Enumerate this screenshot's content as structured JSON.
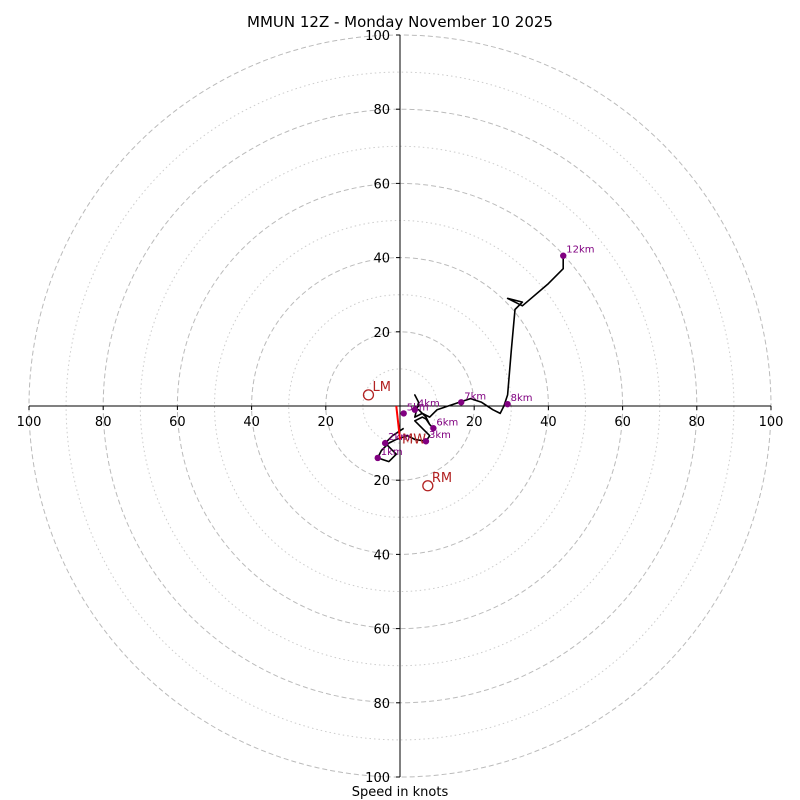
{
  "chart_data": {
    "type": "hodograph",
    "title": "MMUN 12Z - Monday November 10 2025",
    "xlabel": "Speed in knots",
    "range": [
      -100,
      100
    ],
    "ring_values": [
      20,
      40,
      60,
      80,
      100
    ],
    "minor_ring_values": [
      10,
      30,
      50,
      70,
      90
    ],
    "tick_labels": [
      "100",
      "80",
      "60",
      "40",
      "20",
      "20",
      "40",
      "60",
      "80",
      "100"
    ],
    "y_tick_labels": [
      "100",
      "80",
      "60",
      "40",
      "20",
      "20",
      "40",
      "60",
      "80",
      "100"
    ],
    "trace": [
      [
        1,
        -6
      ],
      [
        -2,
        -8
      ],
      [
        -4,
        -10
      ],
      [
        -1,
        -13
      ],
      [
        -3,
        -15
      ],
      [
        -6,
        -14
      ],
      [
        -5,
        -12
      ],
      [
        -3,
        -10
      ],
      [
        -1,
        -9
      ],
      [
        2,
        -8
      ],
      [
        4,
        -9
      ],
      [
        7,
        -9.5
      ],
      [
        8,
        -8
      ],
      [
        6,
        -6
      ],
      [
        4,
        -4
      ],
      [
        6,
        -3
      ],
      [
        7,
        -3.5
      ],
      [
        8,
        -5
      ],
      [
        9,
        -6
      ],
      [
        8,
        -5
      ],
      [
        7,
        -3
      ],
      [
        5,
        -1
      ],
      [
        4,
        -1
      ],
      [
        5,
        0
      ],
      [
        5,
        1
      ],
      [
        4,
        3
      ],
      [
        5,
        1
      ],
      [
        4,
        -3
      ],
      [
        6,
        -2
      ],
      [
        8,
        -3
      ],
      [
        10,
        -1
      ],
      [
        13,
        0
      ],
      [
        16,
        1
      ],
      [
        19,
        2
      ],
      [
        22,
        1
      ],
      [
        25,
        -1
      ],
      [
        27,
        -2
      ],
      [
        28,
        0
      ],
      [
        29,
        3
      ],
      [
        30,
        15
      ],
      [
        31,
        26
      ],
      [
        33,
        28
      ],
      [
        29,
        29
      ],
      [
        33,
        27
      ],
      [
        40,
        33
      ],
      [
        44,
        37
      ],
      [
        44,
        40
      ]
    ],
    "height_markers": [
      {
        "label": "1km",
        "u": -6,
        "v": -14
      },
      {
        "label": "2km",
        "u": -4,
        "v": -10
      },
      {
        "label": "3km",
        "u": 7,
        "v": -9.5
      },
      {
        "label": "4km",
        "u": 4,
        "v": -1
      },
      {
        "label": "5km",
        "u": 1,
        "v": -2
      },
      {
        "label": "6km",
        "u": 9,
        "v": -6
      },
      {
        "label": "7km",
        "u": 16.5,
        "v": 1
      },
      {
        "label": "8km",
        "u": 29,
        "v": 0.5
      },
      {
        "label": "12km",
        "u": 44,
        "v": 40.5
      }
    ],
    "storm_motion": [
      {
        "label": "LM",
        "u": -8.5,
        "v": 3
      },
      {
        "label": "RM",
        "u": 7.5,
        "v": -21.5
      },
      {
        "label": "MW",
        "u": 0,
        "v": -9
      }
    ],
    "shear_vector": [
      [
        0,
        -9
      ],
      [
        -1,
        0
      ]
    ]
  }
}
